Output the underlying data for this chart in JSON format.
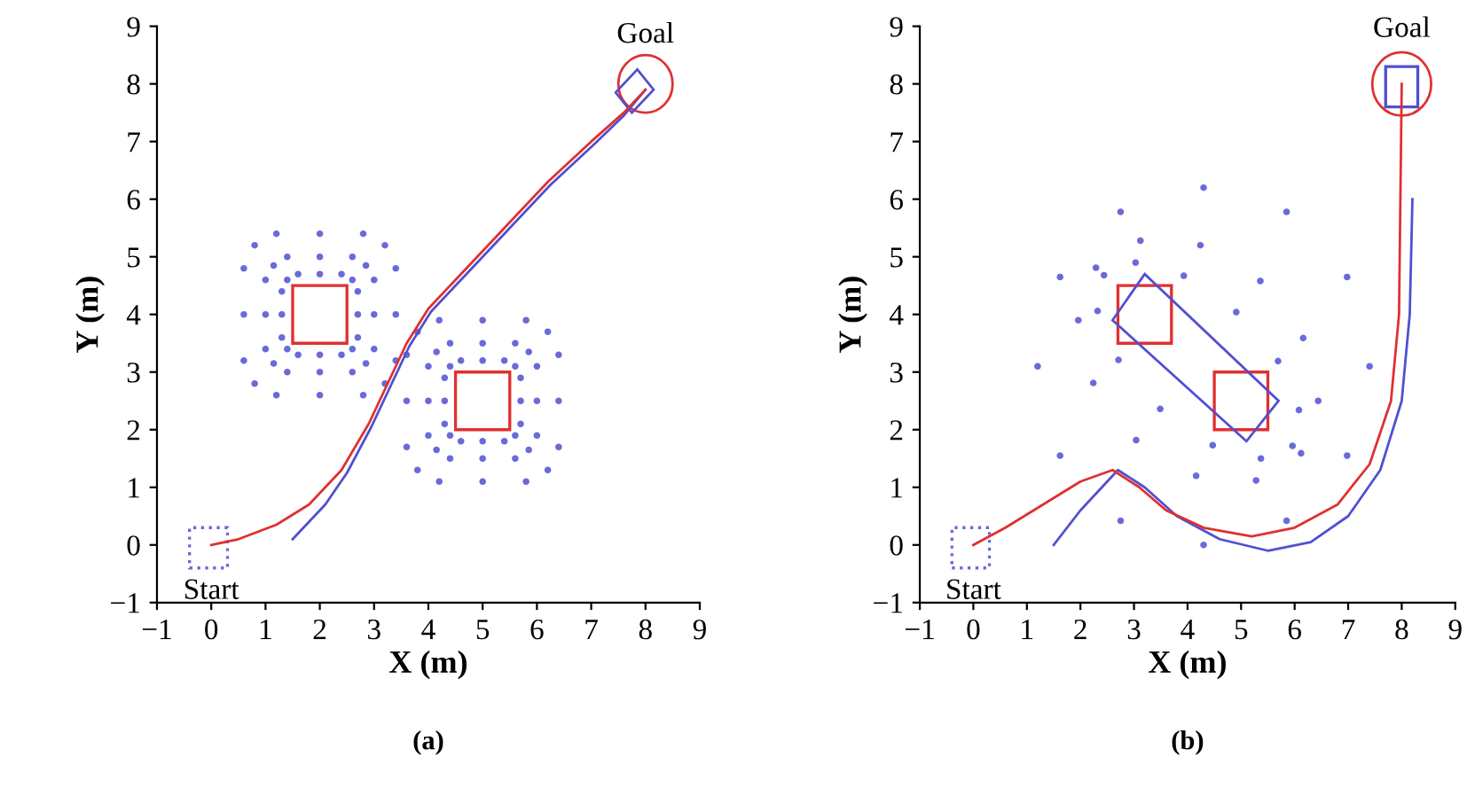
{
  "chart_data": [
    {
      "type": "line",
      "title": "(a)",
      "xlabel": "X (m)",
      "ylabel": "Y (m)",
      "xlim": [
        -1,
        9
      ],
      "ylim": [
        -1,
        9
      ],
      "xticks": [
        -1,
        0,
        1,
        2,
        3,
        4,
        5,
        6,
        7,
        8,
        9
      ],
      "yticks": [
        -1,
        0,
        1,
        2,
        3,
        4,
        5,
        6,
        7,
        8,
        9
      ],
      "grid": false,
      "legend": false,
      "marker": "none",
      "annotations": [
        "Start",
        "Goal"
      ],
      "series": [
        {
          "type": "scatter",
          "marker": "circle",
          "color": "#6a6ad8",
          "x": [
            3.4,
            3.4,
            3.2,
            2.8,
            2,
            1.2,
            0.8,
            0.6,
            0.6,
            0.6,
            0.8,
            1.2,
            2,
            2.8,
            3.2,
            3.4
          ],
          "values": [
            4,
            4.8,
            5.2,
            5.4,
            5.4,
            5.4,
            5.2,
            4.8,
            4,
            3.2,
            2.8,
            2.6,
            2.6,
            2.6,
            2.8,
            3.2
          ]
        },
        {
          "type": "scatter",
          "marker": "circle",
          "color": "#6a6ad8",
          "x": [
            3,
            3,
            2.85,
            2.6,
            2,
            1.4,
            1.15,
            1,
            1,
            1,
            1.15,
            1.4,
            2,
            2.6,
            2.85,
            3
          ],
          "values": [
            4,
            4.6,
            4.85,
            5,
            5,
            5,
            4.85,
            4.6,
            4,
            3.4,
            3.15,
            3,
            3,
            3,
            3.15,
            3.4
          ]
        },
        {
          "type": "scatter",
          "marker": "circle",
          "color": "#6a6ad8",
          "x": [
            2.7,
            2.7,
            2.6,
            2.4,
            2,
            1.6,
            1.4,
            1.3,
            1.3,
            1.3,
            1.4,
            1.6,
            2,
            2.4,
            2.6,
            2.7
          ],
          "values": [
            4,
            4.4,
            4.6,
            4.7,
            4.7,
            4.7,
            4.6,
            4.4,
            4,
            3.6,
            3.4,
            3.3,
            3.3,
            3.3,
            3.4,
            3.6
          ]
        },
        {
          "type": "scatter",
          "marker": "circle",
          "color": "#6a6ad8",
          "x": [
            6.4,
            6.4,
            6.2,
            5.8,
            5,
            4.2,
            3.8,
            3.6,
            3.6,
            3.6,
            3.8,
            4.2,
            5,
            5.8,
            6.2,
            6.4
          ],
          "values": [
            2.5,
            3.3,
            3.7,
            3.9,
            3.9,
            3.9,
            3.7,
            3.3,
            2.5,
            1.7,
            1.3,
            1.1,
            1.1,
            1.1,
            1.3,
            1.7
          ]
        },
        {
          "type": "scatter",
          "marker": "circle",
          "color": "#6a6ad8",
          "x": [
            6,
            6,
            5.85,
            5.6,
            5,
            4.4,
            4.15,
            4,
            4,
            4,
            4.15,
            4.4,
            5,
            5.6,
            5.85,
            6
          ],
          "values": [
            2.5,
            3.1,
            3.35,
            3.5,
            3.5,
            3.5,
            3.35,
            3.1,
            2.5,
            1.9,
            1.65,
            1.5,
            1.5,
            1.5,
            1.65,
            1.9
          ]
        },
        {
          "type": "scatter",
          "marker": "circle",
          "color": "#6a6ad8",
          "x": [
            5.7,
            5.7,
            5.6,
            5.4,
            5,
            4.6,
            4.4,
            4.3,
            4.3,
            4.3,
            4.4,
            4.6,
            5,
            5.4,
            5.6,
            5.7
          ],
          "values": [
            2.5,
            2.9,
            3.1,
            3.2,
            3.2,
            3.2,
            3.1,
            2.9,
            2.5,
            2.1,
            1.9,
            1.8,
            1.8,
            1.8,
            1.9,
            2.1
          ]
        },
        {
          "color": "#5050d0",
          "line_style": "solid",
          "x": [
            1.5,
            1.8,
            2.1,
            2.5,
            2.95,
            3.35,
            3.65,
            4.05,
            4.65,
            5.45,
            6.25,
            7.05,
            7.6,
            8
          ],
          "values": [
            0.1,
            0.4,
            0.7,
            1.25,
            2.05,
            2.85,
            3.45,
            4.05,
            4.65,
            5.45,
            6.25,
            6.95,
            7.45,
            7.9
          ]
        },
        {
          "color": "#e03030",
          "line_style": "solid",
          "x": [
            0,
            0.5,
            1.2,
            1.8,
            2.4,
            2.9,
            3.3,
            3.6,
            4,
            4.6,
            5.4,
            6.2,
            7,
            7.6,
            8
          ],
          "values": [
            0,
            0.1,
            0.35,
            0.7,
            1.3,
            2.1,
            2.9,
            3.5,
            4.1,
            4.7,
            5.5,
            6.3,
            7,
            7.5,
            7.9
          ]
        }
      ]
    },
    {
      "type": "line",
      "title": "(b)",
      "xlabel": "X (m)",
      "ylabel": "Y (m)",
      "xlim": [
        -1,
        9
      ],
      "ylim": [
        -1,
        9
      ],
      "xticks": [
        -1,
        0,
        1,
        2,
        3,
        4,
        5,
        6,
        7,
        8,
        9
      ],
      "yticks": [
        -1,
        0,
        1,
        2,
        3,
        4,
        5,
        6,
        7,
        8,
        9
      ],
      "grid": false,
      "legend": false,
      "marker": "none",
      "annotations": [
        "Start",
        "Goal"
      ],
      "series": [
        {
          "type": "scatter",
          "marker": "circle",
          "color": "#6a6ad8",
          "x": [
            7.4,
            6.98,
            5.85,
            4.3,
            2.75,
            1.62,
            1.2,
            1.62,
            2.75,
            4.3,
            5.85,
            6.98
          ],
          "values": [
            3.1,
            4.65,
            5.78,
            6.2,
            5.78,
            4.65,
            3.1,
            1.55,
            0.42,
            0,
            0.42,
            1.55
          ]
        },
        {
          "type": "scatter",
          "marker": "circle",
          "color": "#6a6ad8",
          "x": [
            6.12,
            6.44,
            6.16,
            5.36,
            4.24,
            3.12,
            2.29,
            1.96,
            2.24,
            3.04,
            4.16,
            5.28
          ],
          "values": [
            1.59,
            2.5,
            3.59,
            4.58,
            5.2,
            5.28,
            4.81,
            3.9,
            2.81,
            1.82,
            1.2,
            1.12
          ]
        },
        {
          "type": "scatter",
          "marker": "circle",
          "color": "#6a6ad8",
          "x": [
            5.96,
            6.08,
            5.69,
            4.91,
            3.93,
            3.03,
            2.44,
            2.32,
            2.71,
            3.49,
            4.47,
            5.37
          ],
          "values": [
            1.72,
            2.34,
            3.19,
            4.04,
            4.67,
            4.9,
            4.68,
            4.06,
            3.21,
            2.36,
            1.73,
            1.5
          ]
        },
        {
          "color": "#5050d0",
          "line_style": "solid",
          "x": [
            1.5,
            2,
            2.5,
            2.7,
            3.2,
            3.8,
            4.6,
            5.5,
            6.3,
            7,
            7.6,
            8,
            8.15,
            8.2
          ],
          "values": [
            0,
            0.6,
            1.1,
            1.3,
            1,
            0.5,
            0.1,
            -0.1,
            0.05,
            0.5,
            1.3,
            2.5,
            4,
            6
          ]
        },
        {
          "color": "#e03030",
          "line_style": "solid",
          "x": [
            0,
            0.6,
            1.3,
            2,
            2.6,
            3.1,
            3.6,
            4.3,
            5.2,
            6,
            6.8,
            7.4,
            7.8,
            7.95,
            8
          ],
          "values": [
            0,
            0.3,
            0.7,
            1.1,
            1.3,
            1,
            0.6,
            0.3,
            0.15,
            0.3,
            0.7,
            1.4,
            2.5,
            4,
            8
          ]
        }
      ]
    }
  ]
}
